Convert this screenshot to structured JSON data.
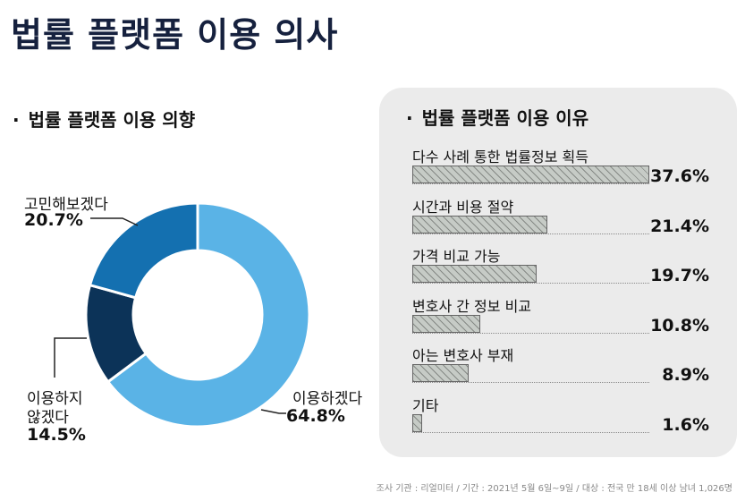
{
  "title": "법률 플랫폼 이용 의사",
  "left_section": {
    "bullet": "·",
    "title": "법률 플랫폼 이용 의향"
  },
  "right_section": {
    "bullet": "·",
    "title": "법률 플랫폼 이용 이유"
  },
  "footer": "조사 기관 : 리얼미터 / 기간 : 2021년 5월 6일~9일 / 대상 : 전국 만 18세 이상 남녀 1,026명",
  "chart_data": [
    {
      "type": "pie",
      "variant": "donut",
      "slices": [
        {
          "label": "이용하겠다",
          "value": 64.8,
          "display": "64.8%",
          "color": "#5ab3e6"
        },
        {
          "label_lines": [
            "이용하지",
            "않겠다"
          ],
          "value": 14.5,
          "display": "14.5%",
          "color": "#0c3358"
        },
        {
          "label": "고민해보겠다",
          "value": 20.7,
          "display": "20.7%",
          "color": "#1470b0"
        }
      ]
    },
    {
      "type": "bar",
      "orientation": "horizontal",
      "categories": [
        "다수 사례 통한 법률정보 획득",
        "시간과 비용 절약",
        "가격 비교 가능",
        "변호사 간 정보 비교",
        "아는 변호사 부재",
        "기타"
      ],
      "values": [
        37.6,
        21.4,
        19.7,
        10.8,
        8.9,
        1.6
      ],
      "value_labels": [
        "37.6%",
        "21.4%",
        "19.7%",
        "10.8%",
        "8.9%",
        "1.6%"
      ],
      "bar_color": "#c6cbc6"
    }
  ]
}
